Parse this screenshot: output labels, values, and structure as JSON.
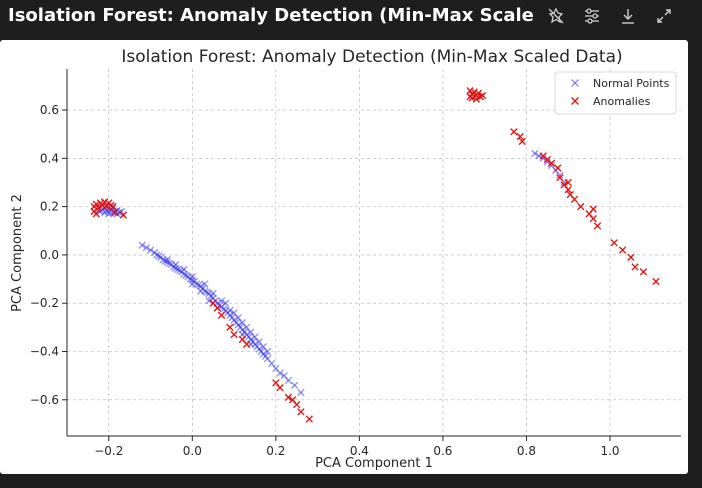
{
  "window": {
    "title": "Isolation Forest: Anomaly Detection (Min-Max Scaled D..."
  },
  "toolbar": {
    "items": [
      {
        "name": "unpin-icon",
        "label": "Unpin"
      },
      {
        "name": "settings-sliders-icon",
        "label": "Chart settings"
      },
      {
        "name": "download-icon",
        "label": "Download"
      },
      {
        "name": "expand-icon",
        "label": "Expand"
      }
    ]
  },
  "colors": {
    "normal": "#3b3bef",
    "anomaly": "#e01010",
    "background": "#1e1e1e"
  },
  "chart_data": {
    "type": "scatter",
    "title": "Isolation Forest: Anomaly Detection (Min-Max Scaled Data)",
    "xlabel": "PCA Component 1",
    "ylabel": "PCA Component 2",
    "xlim": [
      -0.3,
      1.17
    ],
    "ylim": [
      -0.75,
      0.77
    ],
    "xticks": [
      -0.2,
      0.0,
      0.2,
      0.4,
      0.6,
      0.8,
      1.0
    ],
    "yticks": [
      -0.6,
      -0.4,
      -0.2,
      0.0,
      0.2,
      0.4,
      0.6
    ],
    "xtick_labels": [
      "−0.2",
      "0.0",
      "0.2",
      "0.4",
      "0.6",
      "0.8",
      "1.0"
    ],
    "ytick_labels": [
      "−0.6",
      "−0.4",
      "−0.2",
      "0.0",
      "0.2",
      "0.4",
      "0.6"
    ],
    "grid": true,
    "legend_position": "top-right",
    "series": [
      {
        "name": "Normal Points",
        "color": "#3b3bef",
        "marker": "x",
        "points": [
          [
            -0.12,
            0.04
          ],
          [
            -0.11,
            0.03
          ],
          [
            -0.1,
            0.02
          ],
          [
            -0.09,
            0.01
          ],
          [
            -0.085,
            0.0
          ],
          [
            -0.08,
            -0.005
          ],
          [
            -0.075,
            -0.01
          ],
          [
            -0.07,
            -0.02
          ],
          [
            -0.065,
            -0.025
          ],
          [
            -0.06,
            -0.03
          ],
          [
            -0.055,
            -0.035
          ],
          [
            -0.05,
            -0.04
          ],
          [
            -0.045,
            -0.05
          ],
          [
            -0.04,
            -0.055
          ],
          [
            -0.035,
            -0.06
          ],
          [
            -0.03,
            -0.065
          ],
          [
            -0.025,
            -0.07
          ],
          [
            -0.02,
            -0.08
          ],
          [
            -0.015,
            -0.085
          ],
          [
            -0.01,
            -0.09
          ],
          [
            -0.005,
            -0.1
          ],
          [
            0.0,
            -0.105
          ],
          [
            0.005,
            -0.11
          ],
          [
            0.01,
            -0.12
          ],
          [
            0.015,
            -0.125
          ],
          [
            0.02,
            -0.13
          ],
          [
            0.025,
            -0.14
          ],
          [
            0.03,
            -0.15
          ],
          [
            0.035,
            -0.155
          ],
          [
            0.04,
            -0.16
          ],
          [
            0.045,
            -0.17
          ],
          [
            0.05,
            -0.18
          ],
          [
            0.055,
            -0.19
          ],
          [
            0.06,
            -0.2
          ],
          [
            0.065,
            -0.21
          ],
          [
            0.07,
            -0.215
          ],
          [
            0.075,
            -0.225
          ],
          [
            0.08,
            -0.23
          ],
          [
            0.085,
            -0.24
          ],
          [
            0.09,
            -0.25
          ],
          [
            0.095,
            -0.26
          ],
          [
            0.1,
            -0.27
          ],
          [
            0.105,
            -0.28
          ],
          [
            0.11,
            -0.29
          ],
          [
            0.115,
            -0.3
          ],
          [
            0.12,
            -0.31
          ],
          [
            0.125,
            -0.32
          ],
          [
            0.13,
            -0.33
          ],
          [
            0.135,
            -0.34
          ],
          [
            0.14,
            -0.35
          ],
          [
            0.145,
            -0.36
          ],
          [
            0.15,
            -0.37
          ],
          [
            0.155,
            -0.38
          ],
          [
            0.16,
            -0.39
          ],
          [
            0.165,
            -0.4
          ],
          [
            0.17,
            -0.41
          ],
          [
            0.175,
            -0.42
          ],
          [
            0.18,
            -0.43
          ],
          [
            0.19,
            -0.45
          ],
          [
            0.2,
            -0.47
          ],
          [
            0.21,
            -0.49
          ],
          [
            0.22,
            -0.5
          ],
          [
            0.23,
            -0.52
          ],
          [
            0.245,
            -0.54
          ],
          [
            0.26,
            -0.57
          ],
          [
            -0.02,
            -0.06
          ],
          [
            0.0,
            -0.09
          ],
          [
            0.03,
            -0.12
          ],
          [
            0.05,
            -0.16
          ],
          [
            0.08,
            -0.2
          ],
          [
            0.1,
            -0.24
          ],
          [
            0.12,
            -0.28
          ],
          [
            0.14,
            -0.32
          ],
          [
            0.16,
            -0.36
          ],
          [
            0.18,
            -0.4
          ],
          [
            0.07,
            -0.19
          ],
          [
            0.09,
            -0.23
          ],
          [
            0.11,
            -0.26
          ],
          [
            0.13,
            -0.3
          ],
          [
            0.15,
            -0.34
          ],
          [
            0.17,
            -0.38
          ],
          [
            0.0,
            -0.12
          ],
          [
            0.02,
            -0.15
          ],
          [
            -0.04,
            -0.04
          ],
          [
            -0.06,
            -0.02
          ],
          [
            0.04,
            -0.19
          ],
          [
            0.06,
            -0.22
          ],
          [
            0.12,
            -0.33
          ],
          [
            0.14,
            -0.37
          ],
          [
            -0.225,
            0.185
          ],
          [
            -0.22,
            0.18
          ],
          [
            -0.215,
            0.19
          ],
          [
            -0.21,
            0.175
          ],
          [
            -0.205,
            0.185
          ],
          [
            -0.2,
            0.18
          ],
          [
            -0.195,
            0.19
          ],
          [
            -0.19,
            0.175
          ],
          [
            -0.185,
            0.18
          ],
          [
            -0.18,
            0.185
          ],
          [
            -0.175,
            0.175
          ],
          [
            -0.17,
            0.18
          ],
          [
            -0.21,
            0.195
          ],
          [
            -0.2,
            0.17
          ],
          [
            -0.19,
            0.195
          ],
          [
            -0.18,
            0.17
          ],
          [
            0.82,
            0.42
          ],
          [
            0.83,
            0.41
          ],
          [
            0.84,
            0.4
          ],
          [
            0.85,
            0.385
          ],
          [
            0.86,
            0.37
          ],
          [
            0.87,
            0.35
          ],
          [
            0.88,
            0.33
          ],
          [
            0.89,
            0.3
          ]
        ]
      },
      {
        "name": "Anomalies",
        "color": "#e01010",
        "marker": "x",
        "points": [
          [
            0.05,
            -0.2
          ],
          [
            0.06,
            -0.22
          ],
          [
            0.07,
            -0.25
          ],
          [
            0.09,
            -0.3
          ],
          [
            0.1,
            -0.33
          ],
          [
            0.12,
            -0.35
          ],
          [
            0.13,
            -0.37
          ],
          [
            0.2,
            -0.53
          ],
          [
            0.21,
            -0.55
          ],
          [
            0.23,
            -0.59
          ],
          [
            0.24,
            -0.6
          ],
          [
            0.25,
            -0.62
          ],
          [
            0.26,
            -0.65
          ],
          [
            0.28,
            -0.68
          ],
          [
            -0.235,
            0.2
          ],
          [
            -0.23,
            0.21
          ],
          [
            -0.225,
            0.195
          ],
          [
            -0.22,
            0.215
          ],
          [
            -0.215,
            0.205
          ],
          [
            -0.21,
            0.22
          ],
          [
            -0.205,
            0.2
          ],
          [
            -0.2,
            0.215
          ],
          [
            -0.195,
            0.205
          ],
          [
            -0.19,
            0.2
          ],
          [
            -0.185,
            0.175
          ],
          [
            -0.165,
            0.165
          ],
          [
            -0.235,
            0.18
          ],
          [
            -0.23,
            0.17
          ],
          [
            0.665,
            0.68
          ],
          [
            0.67,
            0.665
          ],
          [
            0.675,
            0.675
          ],
          [
            0.68,
            0.66
          ],
          [
            0.685,
            0.67
          ],
          [
            0.69,
            0.655
          ],
          [
            0.67,
            0.65
          ],
          [
            0.68,
            0.645
          ],
          [
            0.695,
            0.66
          ],
          [
            0.665,
            0.655
          ],
          [
            0.77,
            0.51
          ],
          [
            0.785,
            0.49
          ],
          [
            0.79,
            0.47
          ],
          [
            0.84,
            0.41
          ],
          [
            0.85,
            0.395
          ],
          [
            0.86,
            0.38
          ],
          [
            0.875,
            0.36
          ],
          [
            0.88,
            0.32
          ],
          [
            0.89,
            0.29
          ],
          [
            0.9,
            0.27
          ],
          [
            0.905,
            0.25
          ],
          [
            0.915,
            0.23
          ],
          [
            0.93,
            0.2
          ],
          [
            0.95,
            0.17
          ],
          [
            0.96,
            0.15
          ],
          [
            0.97,
            0.12
          ],
          [
            1.01,
            0.05
          ],
          [
            1.03,
            0.02
          ],
          [
            1.05,
            -0.01
          ],
          [
            1.06,
            -0.05
          ],
          [
            1.08,
            -0.07
          ],
          [
            1.11,
            -0.11
          ],
          [
            0.9,
            0.3
          ],
          [
            0.96,
            0.19
          ]
        ]
      }
    ]
  }
}
